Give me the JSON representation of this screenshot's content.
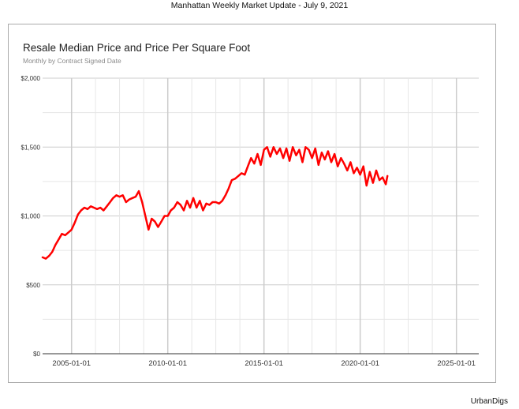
{
  "page": {
    "title": "Manhattan Weekly Market Update - July 9, 2021",
    "brand": "UrbanDigs"
  },
  "chart_data": {
    "type": "line",
    "title": "Resale Median Price and Price Per Square Foot",
    "subtitle": "Monthly by Contract Signed Date",
    "xlabel": "",
    "ylabel": "",
    "ylim": [
      0,
      2000
    ],
    "xlim": [
      "2003-07-01",
      "2026-03-01"
    ],
    "y_ticks": [
      {
        "value": 0,
        "label": "$0"
      },
      {
        "value": 500,
        "label": "$500"
      },
      {
        "value": 1000,
        "label": "$1,000"
      },
      {
        "value": 1500,
        "label": "$1,500"
      },
      {
        "value": 2000,
        "label": "$2,000"
      }
    ],
    "x_ticks": [
      {
        "value": "2005-01-01",
        "label": "2005-01-01"
      },
      {
        "value": "2010-01-01",
        "label": "2010-01-01"
      },
      {
        "value": "2015-01-01",
        "label": "2015-01-01"
      },
      {
        "value": "2020-01-01",
        "label": "2020-01-01"
      },
      {
        "value": "2025-01-01",
        "label": "2025-01-01"
      }
    ],
    "grid": true,
    "legend": "none",
    "series": [
      {
        "color": "#ff0000",
        "points": [
          [
            "2003-07-01",
            700
          ],
          [
            "2003-09-01",
            690
          ],
          [
            "2003-11-01",
            710
          ],
          [
            "2004-01-01",
            740
          ],
          [
            "2004-03-01",
            790
          ],
          [
            "2004-05-01",
            830
          ],
          [
            "2004-07-01",
            870
          ],
          [
            "2004-09-01",
            860
          ],
          [
            "2004-11-01",
            880
          ],
          [
            "2005-01-01",
            900
          ],
          [
            "2005-03-01",
            950
          ],
          [
            "2005-05-01",
            1010
          ],
          [
            "2005-07-01",
            1040
          ],
          [
            "2005-09-01",
            1060
          ],
          [
            "2005-11-01",
            1050
          ],
          [
            "2006-01-01",
            1070
          ],
          [
            "2006-03-01",
            1060
          ],
          [
            "2006-05-01",
            1050
          ],
          [
            "2006-07-01",
            1060
          ],
          [
            "2006-09-01",
            1040
          ],
          [
            "2006-11-01",
            1070
          ],
          [
            "2007-01-01",
            1100
          ],
          [
            "2007-03-01",
            1130
          ],
          [
            "2007-05-01",
            1150
          ],
          [
            "2007-07-01",
            1140
          ],
          [
            "2007-09-01",
            1150
          ],
          [
            "2007-11-01",
            1100
          ],
          [
            "2008-01-01",
            1120
          ],
          [
            "2008-03-01",
            1130
          ],
          [
            "2008-05-01",
            1140
          ],
          [
            "2008-07-01",
            1180
          ],
          [
            "2008-09-01",
            1100
          ],
          [
            "2008-11-01",
            1000
          ],
          [
            "2009-01-01",
            900
          ],
          [
            "2009-03-01",
            980
          ],
          [
            "2009-05-01",
            960
          ],
          [
            "2009-07-01",
            920
          ],
          [
            "2009-09-01",
            960
          ],
          [
            "2009-11-01",
            1000
          ],
          [
            "2010-01-01",
            1000
          ],
          [
            "2010-03-01",
            1040
          ],
          [
            "2010-05-01",
            1060
          ],
          [
            "2010-07-01",
            1100
          ],
          [
            "2010-09-01",
            1080
          ],
          [
            "2010-11-01",
            1040
          ],
          [
            "2011-01-01",
            1110
          ],
          [
            "2011-03-01",
            1060
          ],
          [
            "2011-05-01",
            1130
          ],
          [
            "2011-07-01",
            1060
          ],
          [
            "2011-09-01",
            1110
          ],
          [
            "2011-11-01",
            1040
          ],
          [
            "2012-01-01",
            1090
          ],
          [
            "2012-03-01",
            1080
          ],
          [
            "2012-05-01",
            1100
          ],
          [
            "2012-07-01",
            1100
          ],
          [
            "2012-09-01",
            1090
          ],
          [
            "2012-11-01",
            1110
          ],
          [
            "2013-01-01",
            1150
          ],
          [
            "2013-03-01",
            1200
          ],
          [
            "2013-05-01",
            1260
          ],
          [
            "2013-07-01",
            1270
          ],
          [
            "2013-09-01",
            1290
          ],
          [
            "2013-11-01",
            1310
          ],
          [
            "2014-01-01",
            1300
          ],
          [
            "2014-03-01",
            1360
          ],
          [
            "2014-05-01",
            1420
          ],
          [
            "2014-07-01",
            1380
          ],
          [
            "2014-09-01",
            1450
          ],
          [
            "2014-11-01",
            1370
          ],
          [
            "2015-01-01",
            1480
          ],
          [
            "2015-03-01",
            1500
          ],
          [
            "2015-05-01",
            1430
          ],
          [
            "2015-07-01",
            1500
          ],
          [
            "2015-09-01",
            1450
          ],
          [
            "2015-11-01",
            1490
          ],
          [
            "2016-01-01",
            1420
          ],
          [
            "2016-03-01",
            1490
          ],
          [
            "2016-05-01",
            1400
          ],
          [
            "2016-07-01",
            1500
          ],
          [
            "2016-09-01",
            1440
          ],
          [
            "2016-11-01",
            1480
          ],
          [
            "2017-01-01",
            1390
          ],
          [
            "2017-03-01",
            1500
          ],
          [
            "2017-05-01",
            1480
          ],
          [
            "2017-07-01",
            1420
          ],
          [
            "2017-09-01",
            1490
          ],
          [
            "2017-11-01",
            1370
          ],
          [
            "2018-01-01",
            1460
          ],
          [
            "2018-03-01",
            1410
          ],
          [
            "2018-05-01",
            1470
          ],
          [
            "2018-07-01",
            1390
          ],
          [
            "2018-09-01",
            1450
          ],
          [
            "2018-11-01",
            1360
          ],
          [
            "2019-01-01",
            1420
          ],
          [
            "2019-03-01",
            1380
          ],
          [
            "2019-05-01",
            1330
          ],
          [
            "2019-07-01",
            1390
          ],
          [
            "2019-09-01",
            1310
          ],
          [
            "2019-11-01",
            1350
          ],
          [
            "2020-01-01",
            1300
          ],
          [
            "2020-03-01",
            1360
          ],
          [
            "2020-05-01",
            1220
          ],
          [
            "2020-07-01",
            1320
          ],
          [
            "2020-09-01",
            1240
          ],
          [
            "2020-11-01",
            1330
          ],
          [
            "2021-01-01",
            1260
          ],
          [
            "2021-03-01",
            1280
          ],
          [
            "2021-05-01",
            1230
          ],
          [
            "2021-06-01",
            1290
          ]
        ]
      }
    ]
  }
}
